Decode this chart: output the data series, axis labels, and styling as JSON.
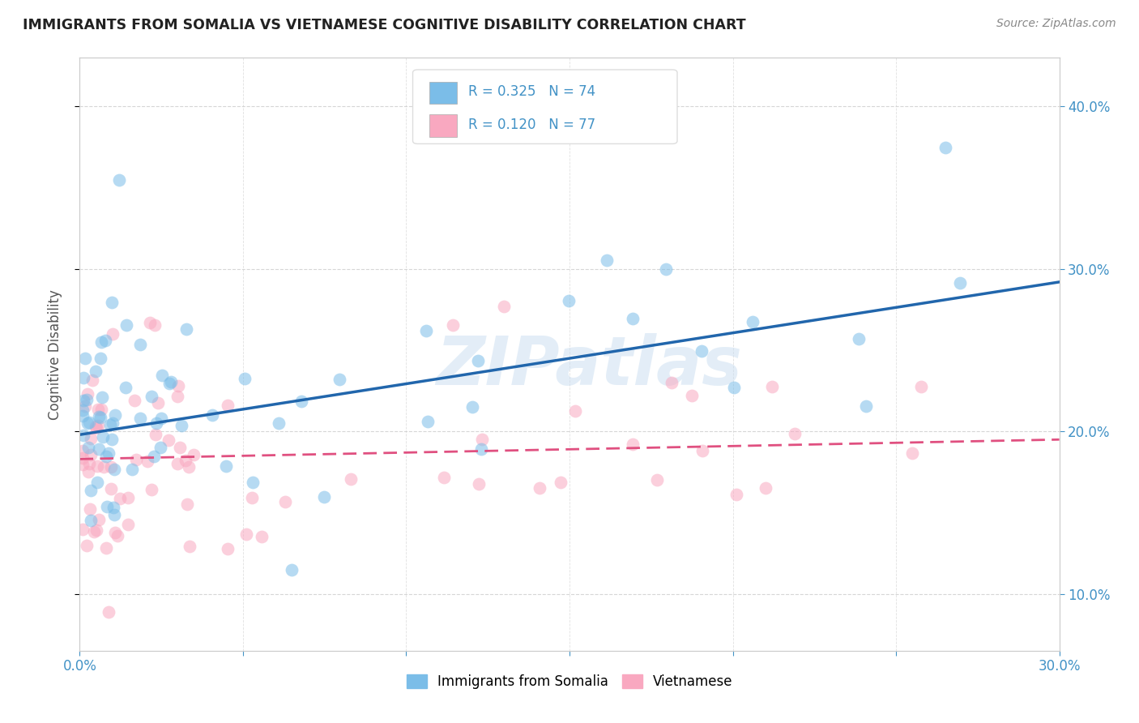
{
  "title": "IMMIGRANTS FROM SOMALIA VS VIETNAMESE COGNITIVE DISABILITY CORRELATION CHART",
  "source": "Source: ZipAtlas.com",
  "ylabel": "Cognitive Disability",
  "xlim": [
    0.0,
    0.3
  ],
  "ylim": [
    0.065,
    0.43
  ],
  "somalia_R": 0.325,
  "somalia_N": 74,
  "vietnamese_R": 0.12,
  "vietnamese_N": 77,
  "somalia_color": "#7bbde8",
  "vietnamese_color": "#f9a8c0",
  "somalia_line_color": "#2166ac",
  "vietnamese_line_color": "#e05080",
  "somalia_line_start_y": 0.198,
  "somalia_line_end_y": 0.292,
  "vietnamese_line_start_y": 0.183,
  "vietnamese_line_end_y": 0.195,
  "watermark": "ZIPatlas",
  "background_color": "#ffffff",
  "grid_color": "#cccccc"
}
